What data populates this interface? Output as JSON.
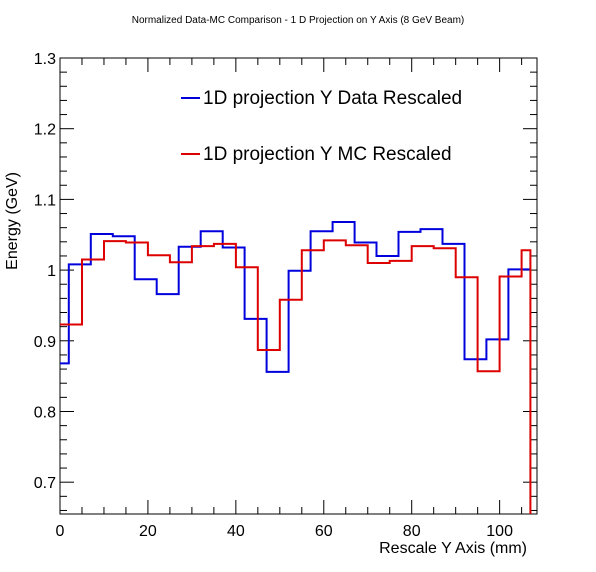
{
  "chart_data": {
    "type": "line",
    "style": "step-histogram",
    "title": "Normalized Data-MC Comparison - 1 D Projection on Y Axis (8 GeV Beam)",
    "xlabel": "Rescale Y Axis (mm)",
    "ylabel": "Energy (GeV)",
    "xlim": [
      0,
      108.5
    ],
    "ylim": [
      0.655,
      1.3
    ],
    "xticks": [
      0,
      20,
      40,
      60,
      80,
      100
    ],
    "yticks": [
      0.7,
      0.8,
      0.9,
      1.0,
      1.1,
      1.2,
      1.3
    ],
    "xtick_labels": [
      "0",
      "20",
      "40",
      "60",
      "80",
      "100"
    ],
    "ytick_labels": [
      "0.7",
      "0.8",
      "0.9",
      "1",
      "1.1",
      "1.2",
      "1.3"
    ],
    "grid": false,
    "legend_position": "top-right",
    "series": [
      {
        "name": "1D projection Y Data Rescaled",
        "color": "#0000dd",
        "edges": [
          0,
          2,
          7,
          12,
          17,
          22,
          27,
          32,
          37,
          42,
          47,
          52,
          57,
          62,
          67,
          72,
          77,
          82,
          87,
          92,
          97,
          102,
          107
        ],
        "values": [
          0.868,
          1.008,
          1.051,
          1.048,
          0.987,
          0.966,
          1.033,
          1.055,
          1.032,
          0.931,
          0.856,
          0.999,
          1.055,
          1.068,
          1.039,
          1.02,
          1.054,
          1.058,
          1.037,
          0.874,
          0.902,
          1.001
        ]
      },
      {
        "name": "1D projection Y MC Rescaled",
        "color": "#dd0000",
        "edges": [
          0,
          5,
          10,
          15,
          20,
          25,
          30,
          35,
          40,
          45,
          50,
          55,
          60,
          65,
          70,
          75,
          80,
          85,
          90,
          95,
          100,
          105,
          107
        ],
        "values": [
          0.923,
          1.015,
          1.041,
          1.039,
          1.021,
          1.011,
          1.034,
          1.037,
          1.004,
          0.887,
          0.958,
          1.028,
          1.042,
          1.035,
          1.01,
          1.013,
          1.034,
          1.031,
          0.99,
          0.857,
          0.991,
          1.028
        ],
        "tail_value": 0.655
      }
    ]
  }
}
